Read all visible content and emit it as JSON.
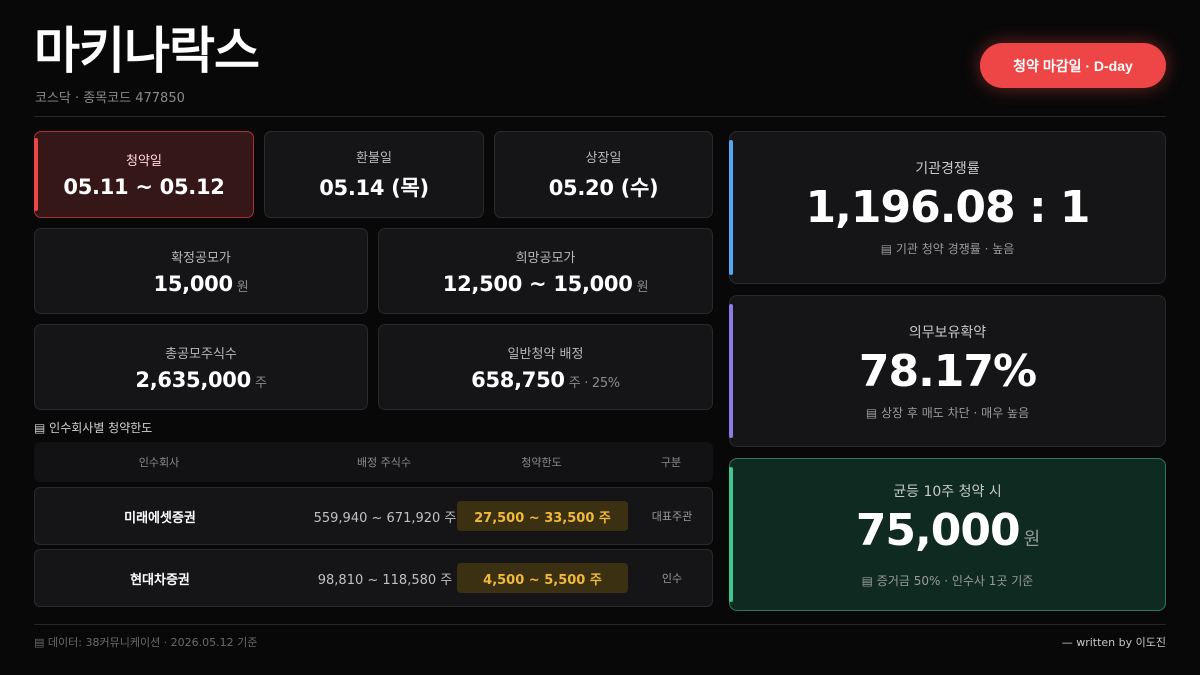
{
  "header": {
    "title": "마키나락스",
    "subtitle": "코스닥 · 종목코드 477850",
    "deadline_label": "청약 마감일 · D-day"
  },
  "dates": [
    {
      "label": "청약일",
      "value": "05.11 ~ 05.12"
    },
    {
      "label": "환불일",
      "value": "05.14 (목)"
    },
    {
      "label": "상장일",
      "value": "05.20 (수)"
    }
  ],
  "prices": [
    {
      "label": "확정공모가",
      "value": "15,000",
      "unit": "원"
    },
    {
      "label": "희망공모가",
      "value": "12,500 ~ 15,000",
      "unit": "원"
    }
  ],
  "shares": [
    {
      "label": "총공모주식수",
      "value": "2,635,000",
      "unit": "주"
    },
    {
      "label": "일반청약 배정",
      "value": "658,750",
      "unit": "주 · 25%"
    }
  ],
  "highlights": [
    {
      "label": "기관경쟁률",
      "value": "1,196.08 : 1",
      "unit": "",
      "note": "기관 청약 경쟁률 · 높음",
      "accent": "#4fa8f0"
    },
    {
      "label": "의무보유확약",
      "value": "78.17%",
      "unit": "",
      "note": "상장 후 매도 차단 · 매우 높음",
      "accent": "#8e7ae6"
    },
    {
      "label": "균등 10주 청약 시",
      "value": "75,000",
      "unit": "원",
      "note": "증거금 50% · 인수사 1곳 기준",
      "accent": "#3fc78f"
    }
  ],
  "underwriters": {
    "section_title": "인수회사별 청약한도",
    "headers": [
      "인수회사",
      "배정 주식수",
      "청약한도",
      "구분"
    ],
    "rows": [
      {
        "name": "미래에셋증권",
        "shares": "559,940 ~ 671,920 주",
        "limit": "27,500 ~ 33,500 주",
        "type": "대표주관"
      },
      {
        "name": "현대차증권",
        "shares": "98,810 ~ 118,580 주",
        "limit": "4,500 ~ 5,500 주",
        "type": "인수"
      }
    ]
  },
  "footer": {
    "source": "데이터: 38커뮤니케이션 · 2026.05.12 기준",
    "credit": "— written by 이도진"
  },
  "icons": {
    "note": "bars-icon"
  },
  "colors": {
    "accent_red": "#ee4646",
    "highlight_gold": "#f0b93a"
  }
}
